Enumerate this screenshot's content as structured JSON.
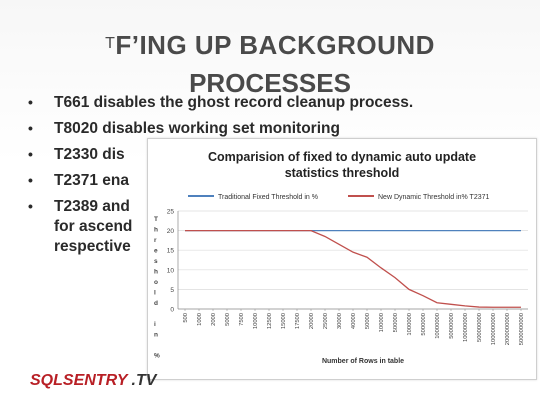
{
  "slide": {
    "title_prefix": "T",
    "title_line1": "F’ING UP BACKGROUND",
    "title_line2": "PROCESSES",
    "bullets": [
      {
        "text": "T661 disables the ghost record cleanup process."
      },
      {
        "text": "T8020 disables working set monitoring"
      },
      {
        "text": "T2330 dis"
      },
      {
        "text": "T2371 ena"
      },
      {
        "text": "T2389 and"
      }
    ],
    "continuation": [
      "for ascend",
      "respective"
    ],
    "logo_main": "SQLSENTRY",
    "logo_tv": ".TV"
  },
  "chart_data": {
    "type": "line",
    "title_line1": "Comparision of fixed to dynamic auto update",
    "title_line2": "statistics threshold",
    "xlabel": "Number of Rows in table",
    "ylabel_chars": [
      "T",
      "h",
      "r",
      "e",
      "s",
      "h",
      "o",
      "l",
      "d",
      "",
      "i",
      "n",
      "",
      "%"
    ],
    "categories": [
      "500",
      "1000",
      "2000",
      "5000",
      "7500",
      "10000",
      "12500",
      "15000",
      "17500",
      "20000",
      "25000",
      "30000",
      "40000",
      "50000",
      "100000",
      "500000",
      "1000000",
      "5000000",
      "10000000",
      "50000000",
      "100000000",
      "500000000",
      "1000000000",
      "2000000000",
      "5000000000"
    ],
    "ylim": [
      0,
      25
    ],
    "yticks": [
      "0",
      "5",
      "10",
      "15",
      "20",
      "25"
    ],
    "legend_position": "top",
    "series": [
      {
        "name": "Traditional Fixed Threshold in %",
        "color": "#4f81bd",
        "values": [
          20,
          20,
          20,
          20,
          20,
          20,
          20,
          20,
          20,
          20,
          20,
          20,
          20,
          20,
          20,
          20,
          20,
          20,
          20,
          20,
          20,
          20,
          20,
          20,
          20
        ]
      },
      {
        "name": "New Dynamic Threshold in% T2371",
        "color": "#c0504d",
        "values": [
          20,
          20,
          20,
          20,
          20,
          20,
          20,
          20,
          20,
          20,
          18.5,
          16.5,
          14.5,
          13.2,
          10.5,
          8,
          5,
          3.4,
          1.6,
          1.2,
          0.8,
          0.5,
          0.45,
          0.45,
          0.45
        ]
      }
    ]
  }
}
